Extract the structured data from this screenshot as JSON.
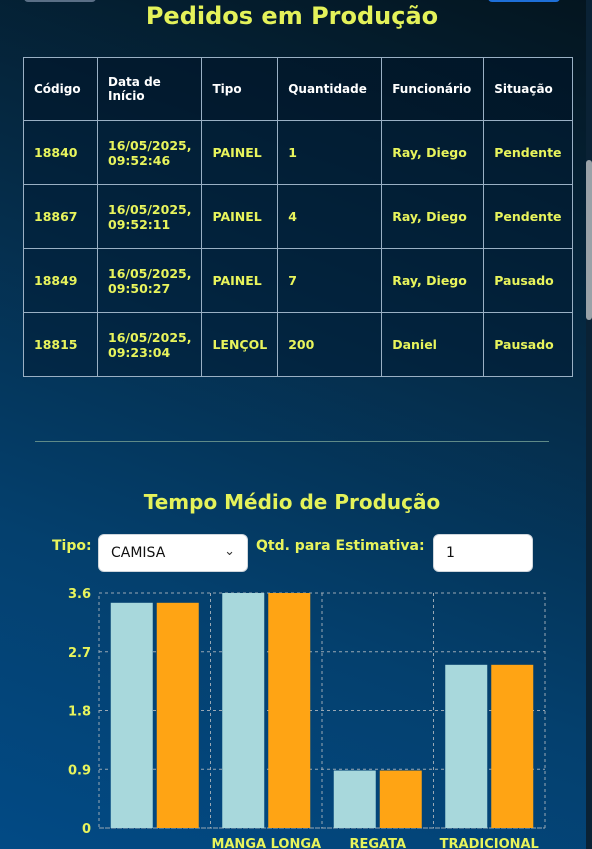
{
  "page": {
    "title": "Pedidos em Produção"
  },
  "table": {
    "headers": [
      "Código",
      "Data de Início",
      "Tipo",
      "Quantidade",
      "Funcionário",
      "Situação"
    ],
    "rows": [
      [
        "18840",
        "16/05/2025, 09:52:46",
        "PAINEL",
        "1",
        "Ray, Diego",
        "Pendente"
      ],
      [
        "18867",
        "16/05/2025, 09:52:11",
        "PAINEL",
        "4",
        "Ray, Diego",
        "Pendente"
      ],
      [
        "18849",
        "16/05/2025, 09:50:27",
        "PAINEL",
        "7",
        "Ray, Diego",
        "Pausado"
      ],
      [
        "18815",
        "16/05/2025, 09:23:04",
        "LENÇOL",
        "200",
        "Daniel",
        "Pausado"
      ]
    ]
  },
  "avg": {
    "title": "Tempo Médio de Produção",
    "tipo_label": "Tipo:",
    "tipo_value": "CAMISA",
    "qty_label": "Qtd. para Estimativa:",
    "qty_value": "1"
  },
  "colors": {
    "series1": "#a8d8dc",
    "series2": "#ffa414",
    "text": "#e8f45c"
  },
  "chart_data": {
    "type": "bar",
    "categories": [
      "",
      "MANGA LONGA",
      "REGATA",
      "TRADICIONAL"
    ],
    "series": [
      {
        "values": [
          3.45,
          3.6,
          0.88,
          2.5
        ]
      },
      {
        "values": [
          3.45,
          3.6,
          0.88,
          2.5
        ]
      }
    ],
    "yticks": [
      "0",
      "0.9",
      "1.8",
      "2.7",
      "3.6"
    ],
    "ylim": [
      0,
      3.6
    ],
    "grid": true
  }
}
